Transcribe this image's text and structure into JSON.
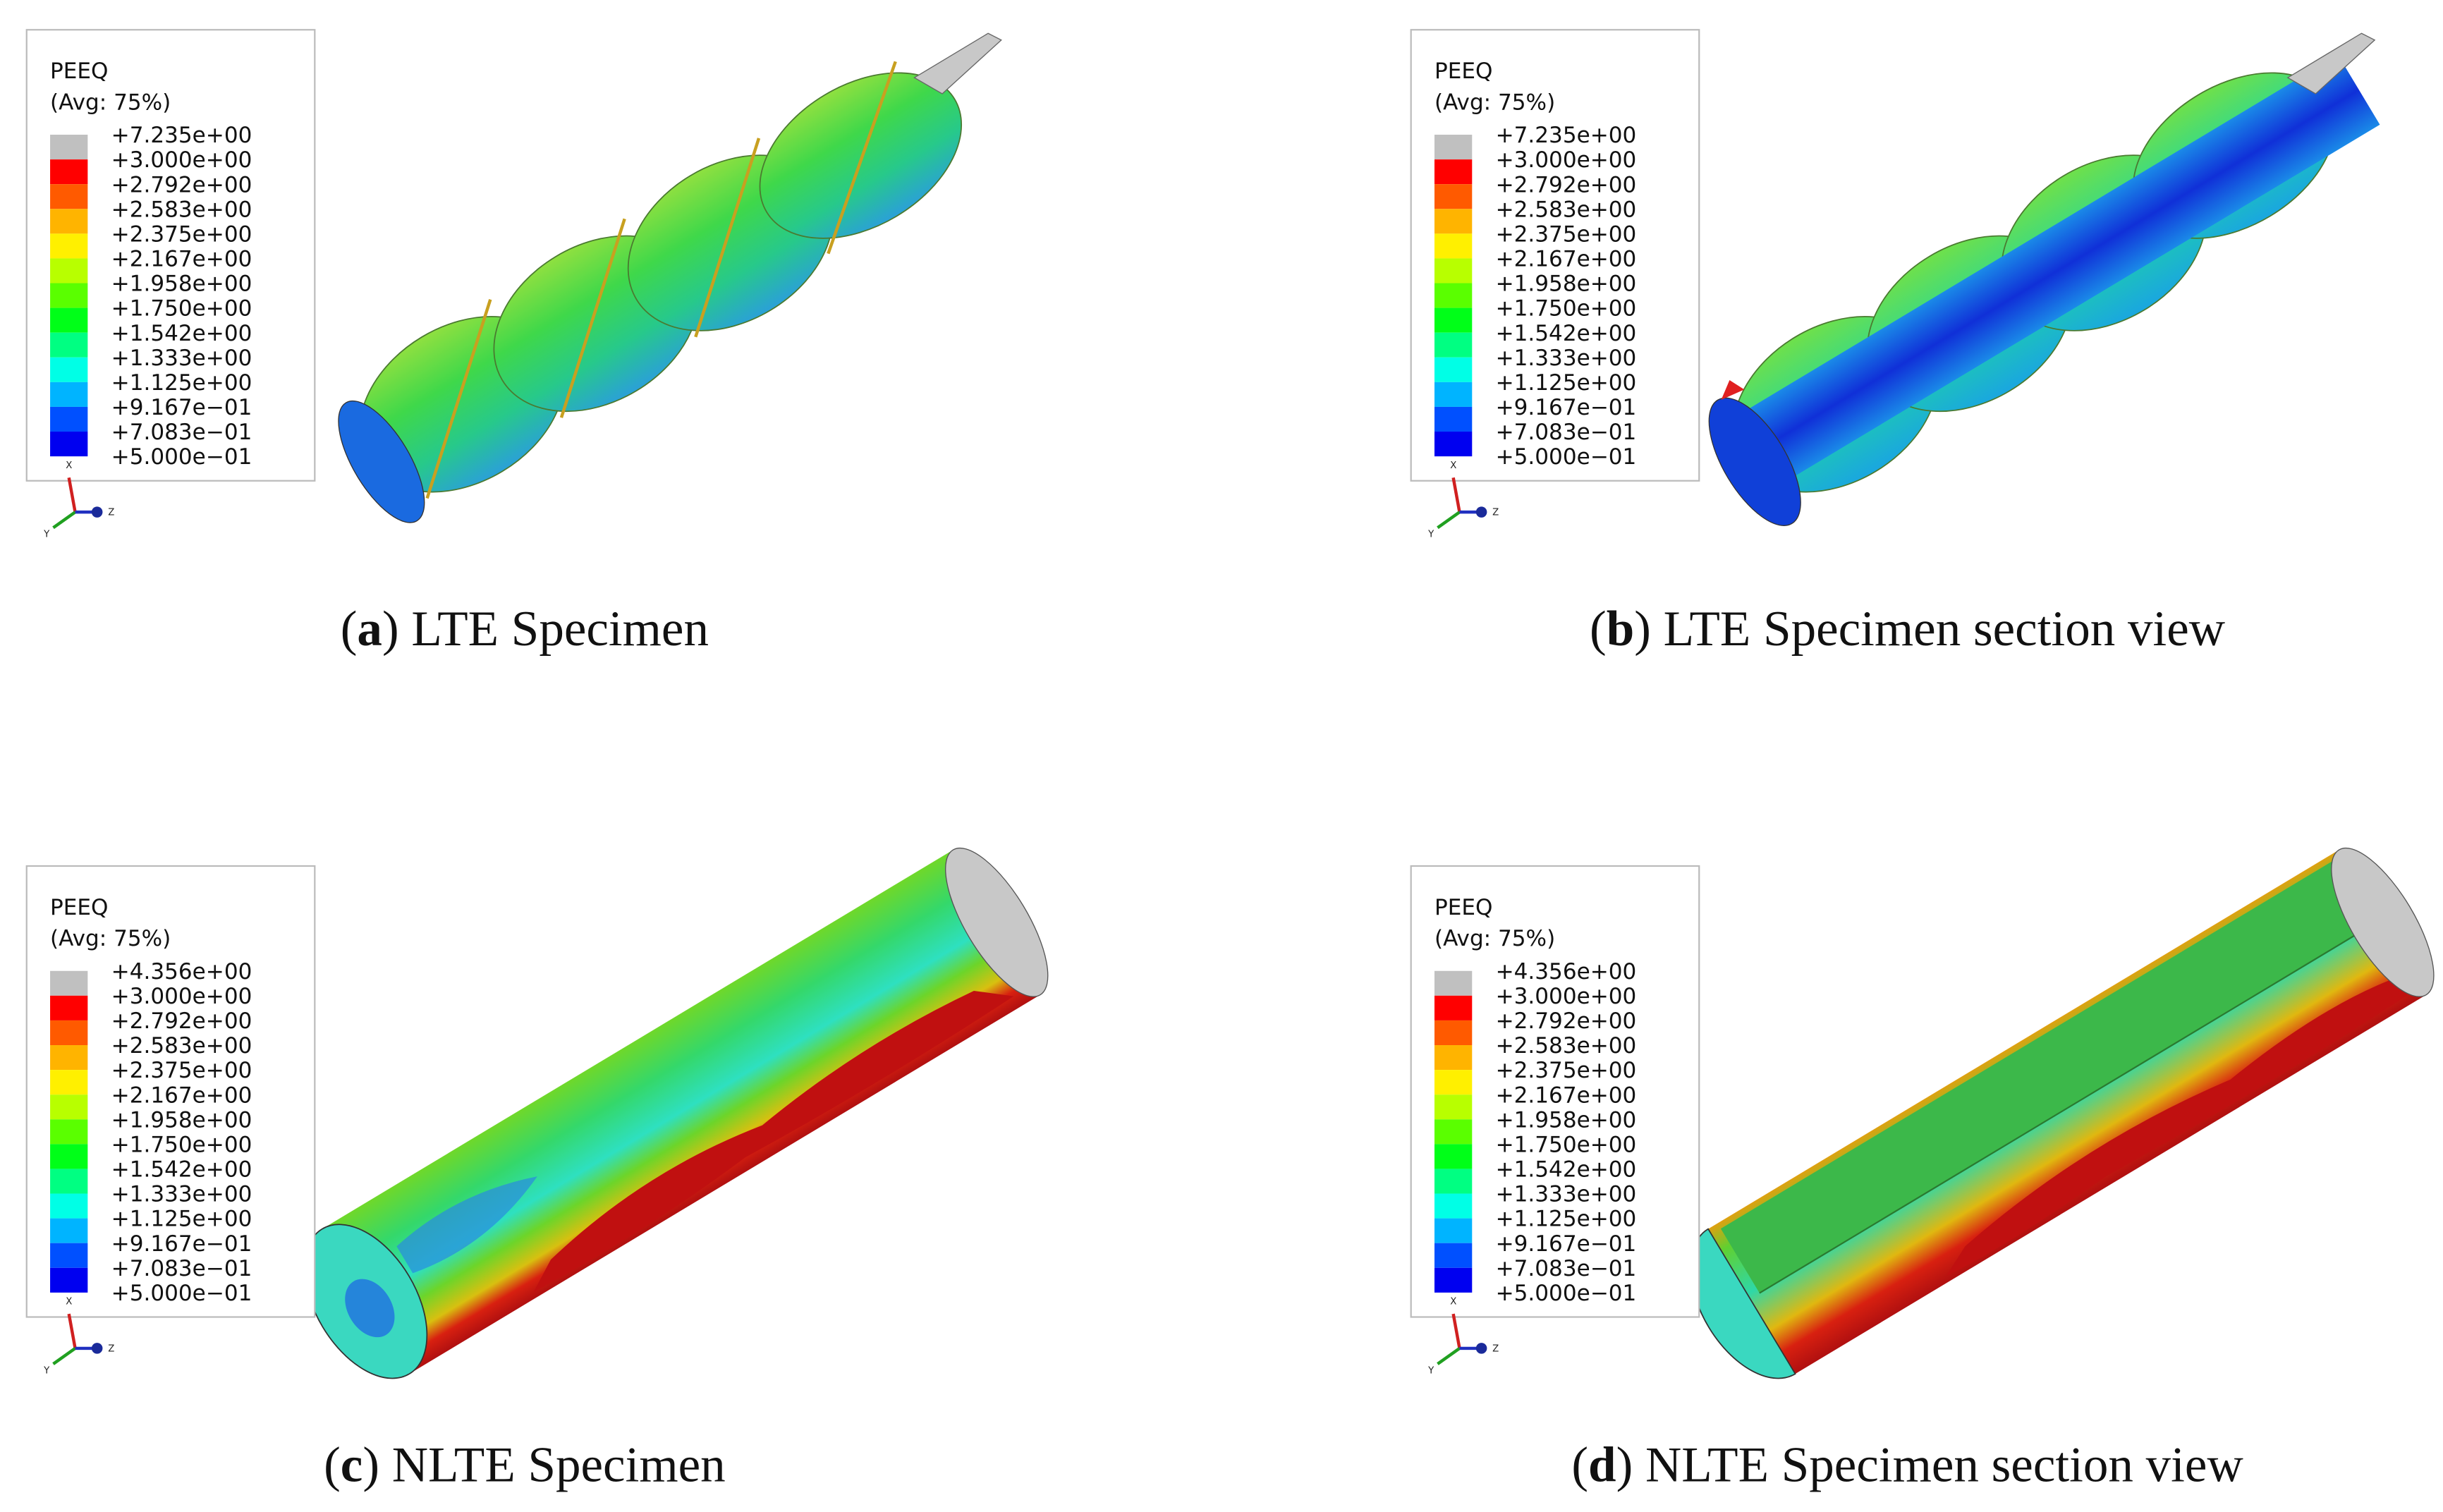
{
  "figure": {
    "panels": [
      {
        "caption": [
          "(",
          "a",
          ") LTE Specimen"
        ],
        "legend": {
          "title": "PEEQ",
          "subtitle": "(Avg: 75%)",
          "values": [
            "+7.235e+00",
            "+3.000e+00",
            "+2.792e+00",
            "+2.583e+00",
            "+2.375e+00",
            "+2.167e+00",
            "+1.958e+00",
            "+1.750e+00",
            "+1.542e+00",
            "+1.333e+00",
            "+1.125e+00",
            "+9.167e−01",
            "+7.083e−01",
            "+5.000e−01"
          ]
        },
        "triad": [
          "X",
          "Y",
          "Z"
        ]
      },
      {
        "caption": [
          "(",
          "b",
          ") LTE Specimen section view"
        ],
        "legend": {
          "title": "PEEQ",
          "subtitle": "(Avg: 75%)",
          "values": [
            "+7.235e+00",
            "+3.000e+00",
            "+2.792e+00",
            "+2.583e+00",
            "+2.375e+00",
            "+2.167e+00",
            "+1.958e+00",
            "+1.750e+00",
            "+1.542e+00",
            "+1.333e+00",
            "+1.125e+00",
            "+9.167e−01",
            "+7.083e−01",
            "+5.000e−01"
          ]
        },
        "triad": [
          "X",
          "Y",
          "Z"
        ]
      },
      {
        "caption": [
          "(",
          "c",
          ") NLTE Specimen"
        ],
        "legend": {
          "title": "PEEQ",
          "subtitle": "(Avg: 75%)",
          "values": [
            "+4.356e+00",
            "+3.000e+00",
            "+2.792e+00",
            "+2.583e+00",
            "+2.375e+00",
            "+2.167e+00",
            "+1.958e+00",
            "+1.750e+00",
            "+1.542e+00",
            "+1.333e+00",
            "+1.125e+00",
            "+9.167e−01",
            "+7.083e−01",
            "+5.000e−01"
          ]
        },
        "triad": [
          "X",
          "Y",
          "Z"
        ]
      },
      {
        "caption": [
          "(",
          "d",
          ") NLTE Specimen section view"
        ],
        "legend": {
          "title": "PEEQ",
          "subtitle": "(Avg: 75%)",
          "values": [
            "+4.356e+00",
            "+3.000e+00",
            "+2.792e+00",
            "+2.583e+00",
            "+2.375e+00",
            "+2.167e+00",
            "+1.958e+00",
            "+1.750e+00",
            "+1.542e+00",
            "+1.333e+00",
            "+1.125e+00",
            "+9.167e−01",
            "+7.083e−01",
            "+5.000e−01"
          ]
        },
        "triad": [
          "X",
          "Y",
          "Z"
        ]
      }
    ]
  }
}
